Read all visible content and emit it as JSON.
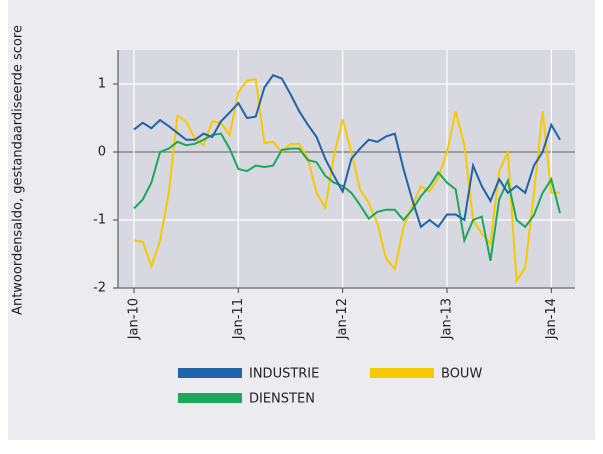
{
  "chart_data": {
    "type": "line",
    "y_label": "Antwoordensaldo, gestandaardiseerde score",
    "categories": [
      "Jan-10",
      null,
      null,
      null,
      null,
      null,
      null,
      null,
      null,
      null,
      null,
      null,
      "Jan-11",
      null,
      null,
      null,
      null,
      null,
      null,
      null,
      null,
      null,
      null,
      null,
      "Jan-12",
      null,
      null,
      null,
      null,
      null,
      null,
      null,
      null,
      null,
      null,
      null,
      "Jan-13",
      null,
      null,
      null,
      null,
      null,
      null,
      null,
      null,
      null,
      null,
      null,
      "Jan-14",
      null
    ],
    "series": [
      {
        "name": "INDUSTRIE",
        "color": "#1f63a8",
        "values": [
          0.33,
          0.43,
          0.35,
          0.47,
          0.38,
          0.28,
          0.18,
          0.18,
          0.27,
          0.22,
          0.45,
          0.58,
          0.72,
          0.5,
          0.52,
          0.95,
          1.13,
          1.08,
          0.85,
          0.6,
          0.4,
          0.22,
          -0.1,
          -0.35,
          -0.58,
          -0.1,
          0.05,
          0.18,
          0.15,
          0.23,
          0.27,
          -0.25,
          -0.7,
          -1.1,
          -1.0,
          -1.1,
          -0.92,
          -0.92,
          -1.0,
          -0.2,
          -0.5,
          -0.72,
          -0.4,
          -0.6,
          -0.5,
          -0.6,
          -0.2,
          0.0,
          0.4,
          0.18
        ]
      },
      {
        "name": "BOUW",
        "color": "#f7c900",
        "values": [
          -1.3,
          -1.32,
          -1.68,
          -1.3,
          -0.6,
          0.53,
          0.45,
          0.2,
          0.1,
          0.45,
          0.43,
          0.25,
          0.88,
          1.05,
          1.07,
          0.13,
          0.15,
          0.0,
          0.12,
          0.12,
          -0.1,
          -0.6,
          -0.82,
          -0.05,
          0.48,
          0.0,
          -0.55,
          -0.75,
          -1.05,
          -1.57,
          -1.72,
          -1.1,
          -0.8,
          -0.5,
          -0.58,
          -0.38,
          0.0,
          0.6,
          0.1,
          -1.0,
          -1.2,
          -1.35,
          -0.28,
          0.0,
          -1.9,
          -1.7,
          -0.6,
          0.6,
          -0.6,
          -0.6
        ]
      },
      {
        "name": "DIENSTEN",
        "color": "#1ba85a",
        "values": [
          -0.83,
          -0.7,
          -0.45,
          0.0,
          0.05,
          0.15,
          0.1,
          0.12,
          0.18,
          0.25,
          0.27,
          0.05,
          -0.25,
          -0.28,
          -0.2,
          -0.22,
          -0.2,
          0.03,
          0.05,
          0.05,
          -0.12,
          -0.15,
          -0.35,
          -0.45,
          -0.5,
          -0.6,
          -0.78,
          -0.98,
          -0.88,
          -0.85,
          -0.85,
          -1.0,
          -0.85,
          -0.65,
          -0.5,
          -0.3,
          -0.45,
          -0.55,
          -1.3,
          -1.0,
          -0.95,
          -1.6,
          -0.7,
          -0.42,
          -1.0,
          -1.1,
          -0.93,
          -0.6,
          -0.4,
          -0.9
        ]
      }
    ],
    "ylim": [
      -2,
      1.5
    ],
    "yticks": [
      -2,
      -1,
      0,
      1
    ],
    "grid": true
  }
}
